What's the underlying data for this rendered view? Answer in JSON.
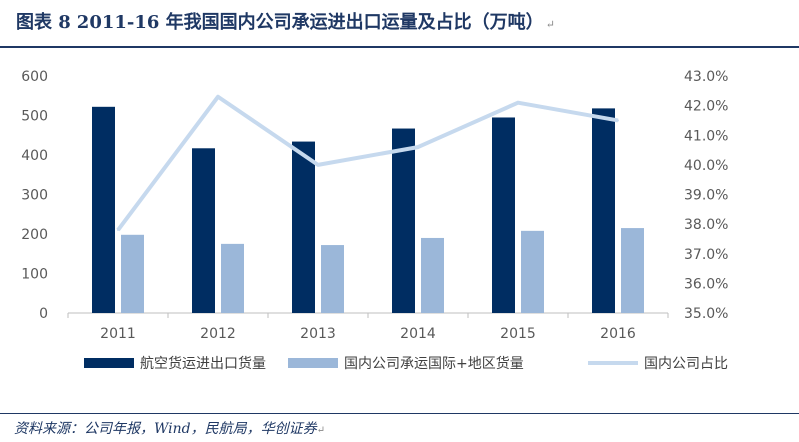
{
  "header": {
    "figure_label": "图表 8",
    "title": "2011-16 年我国国内公司承运进出口运量及占比（万吨）",
    "mark": "↵"
  },
  "footer": {
    "source": "资料来源：公司年报，Wind，民航局，华创证券",
    "mark": "↵"
  },
  "chart_data": {
    "type": "bar",
    "categories": [
      "2011",
      "2012",
      "2013",
      "2014",
      "2015",
      "2016"
    ],
    "series": [
      {
        "name": "航空货运进出口货量",
        "kind": "bar",
        "axis": "left",
        "color": "#002d62",
        "values": [
          522,
          417,
          434,
          467,
          495,
          518
        ]
      },
      {
        "name": "国内公司承运国际+地区货量",
        "kind": "bar",
        "axis": "left",
        "color": "#9bb7d9",
        "values": [
          198,
          175,
          172,
          190,
          208,
          215
        ]
      },
      {
        "name": "国内公司占比",
        "kind": "line",
        "axis": "right",
        "color": "#c6d9ee",
        "values": [
          37.8,
          42.3,
          40.0,
          40.6,
          42.1,
          41.5
        ]
      }
    ],
    "y_left": {
      "min": 0,
      "max": 600,
      "ticks": [
        "0",
        "100",
        "200",
        "300",
        "400",
        "500",
        "600"
      ]
    },
    "y_right": {
      "min": 35.0,
      "max": 43.0,
      "ticks": [
        "35.0%",
        "36.0%",
        "37.0%",
        "38.0%",
        "39.0%",
        "40.0%",
        "41.0%",
        "42.0%",
        "43.0%"
      ]
    },
    "legend": "bottom",
    "grid": false
  }
}
